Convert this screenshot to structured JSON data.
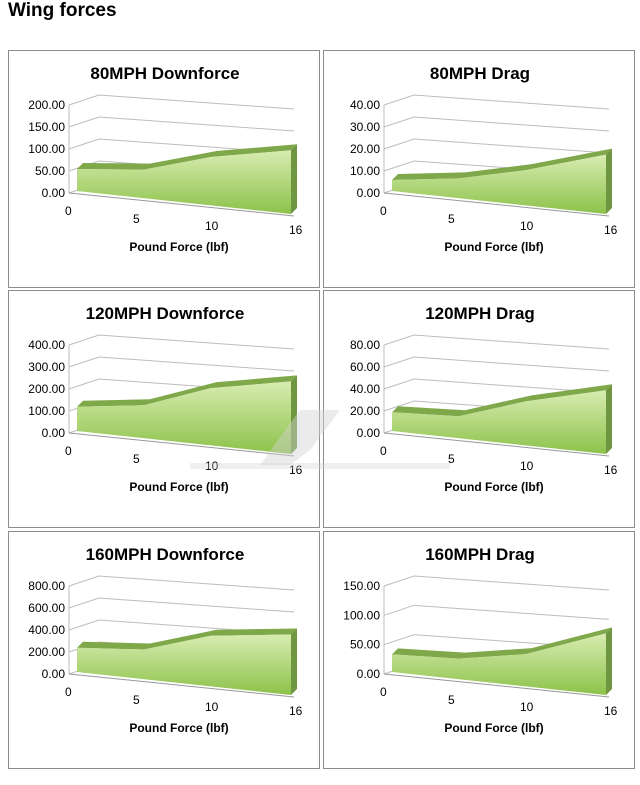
{
  "page_title": "Wing forces",
  "watermark": "APR PERFORMANCE",
  "chart_data": [
    {
      "type": "area",
      "title": "80MPH Downforce",
      "xlabel": "Pound Force (lbf)",
      "ylabel": "",
      "x": [
        0,
        5,
        10,
        16
      ],
      "values": [
        50,
        65,
        110,
        145
      ],
      "yticks": [
        "0.00",
        "50.00",
        "100.00",
        "150.00",
        "200.00"
      ],
      "ylim": [
        0,
        200
      ],
      "xticks": [
        "0",
        "5",
        "10",
        "16"
      ],
      "grid": true,
      "color": "#9acd5a"
    },
    {
      "type": "area",
      "title": "80MPH Drag",
      "xlabel": "Pound Force (lbf)",
      "ylabel": "",
      "x": [
        0,
        5,
        10,
        16
      ],
      "values": [
        5,
        9,
        16,
        27
      ],
      "yticks": [
        "0.00",
        "10.00",
        "20.00",
        "30.00",
        "40.00"
      ],
      "ylim": [
        0,
        40
      ],
      "xticks": [
        "0",
        "5",
        "10",
        "16"
      ],
      "grid": true,
      "color": "#9acd5a"
    },
    {
      "type": "area",
      "title": "120MPH Downforce",
      "xlabel": "Pound Force (lbf)",
      "ylabel": "",
      "x": [
        0,
        5,
        10,
        16
      ],
      "values": [
        110,
        150,
        260,
        330
      ],
      "yticks": [
        "0.00",
        "100.00",
        "200.00",
        "300.00",
        "400.00"
      ],
      "ylim": [
        0,
        400
      ],
      "xticks": [
        "0",
        "5",
        "10",
        "16"
      ],
      "grid": true,
      "color": "#9acd5a"
    },
    {
      "type": "area",
      "title": "120MPH Drag",
      "xlabel": "Pound Force (lbf)",
      "ylabel": "",
      "x": [
        0,
        5,
        10,
        16
      ],
      "values": [
        17,
        20,
        40,
        58
      ],
      "yticks": [
        "0.00",
        "20.00",
        "40.00",
        "60.00",
        "80.00"
      ],
      "ylim": [
        0,
        80
      ],
      "xticks": [
        "0",
        "5",
        "10",
        "16"
      ],
      "grid": true,
      "color": "#9acd5a"
    },
    {
      "type": "area",
      "title": "160MPH Downforce",
      "xlabel": "Pound Force (lbf)",
      "ylabel": "",
      "x": [
        0,
        5,
        10,
        16
      ],
      "values": [
        220,
        270,
        460,
        550
      ],
      "yticks": [
        "0.00",
        "200.00",
        "400.00",
        "600.00",
        "800.00"
      ],
      "ylim": [
        0,
        800
      ],
      "xticks": [
        "0",
        "5",
        "10",
        "16"
      ],
      "grid": true,
      "color": "#9acd5a"
    },
    {
      "type": "area",
      "title": "160MPH Drag",
      "xlabel": "Pound Force (lbf)",
      "ylabel": "",
      "x": [
        0,
        5,
        10,
        16
      ],
      "values": [
        30,
        35,
        55,
        105
      ],
      "yticks": [
        "0.00",
        "50.00",
        "100.00",
        "150.00"
      ],
      "ylim": [
        0,
        150
      ],
      "xticks": [
        "0",
        "5",
        "10",
        "16"
      ],
      "grid": true,
      "color": "#9acd5a"
    }
  ]
}
